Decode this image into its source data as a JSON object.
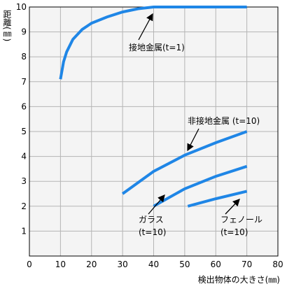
{
  "chart_data": {
    "type": "line",
    "y_label": "距離(㎜)",
    "x_label": "検出物体の大きさ(㎜)",
    "xlim": [
      0,
      80
    ],
    "xticks": [
      0,
      10,
      20,
      30,
      40,
      50,
      60,
      70,
      80
    ],
    "ylim": [
      0,
      10
    ],
    "yticks": [
      1,
      2,
      3,
      4,
      5,
      6,
      7,
      8,
      9,
      10
    ],
    "grid": true,
    "series": [
      {
        "color": "#1f86e6",
        "x": [
          10,
          11,
          12,
          14,
          17,
          20,
          25,
          30,
          35,
          40,
          70
        ],
        "values": [
          7.1,
          7.8,
          8.2,
          8.7,
          9.1,
          9.35,
          9.6,
          9.8,
          9.93,
          10,
          10
        ]
      },
      {
        "color": "#1f86e6",
        "x": [
          30,
          40,
          50,
          60,
          70
        ],
        "values": [
          2.5,
          3.4,
          4.05,
          4.55,
          5.0
        ]
      },
      {
        "color": "#1f86e6",
        "x": [
          40,
          50,
          60,
          70
        ],
        "values": [
          2.0,
          2.7,
          3.2,
          3.6
        ]
      },
      {
        "color": "#1f86e6",
        "x": [
          51,
          60,
          70
        ],
        "values": [
          2.0,
          2.3,
          2.6
        ]
      }
    ],
    "annotations": [
      {
        "text": "接地金属(t=1)"
      },
      {
        "text": "非接地金属 (t=10)"
      },
      {
        "text": "ガラス"
      },
      {
        "text": "(t=10)"
      },
      {
        "text": "フェノール"
      },
      {
        "text": "(t=10)"
      }
    ]
  }
}
